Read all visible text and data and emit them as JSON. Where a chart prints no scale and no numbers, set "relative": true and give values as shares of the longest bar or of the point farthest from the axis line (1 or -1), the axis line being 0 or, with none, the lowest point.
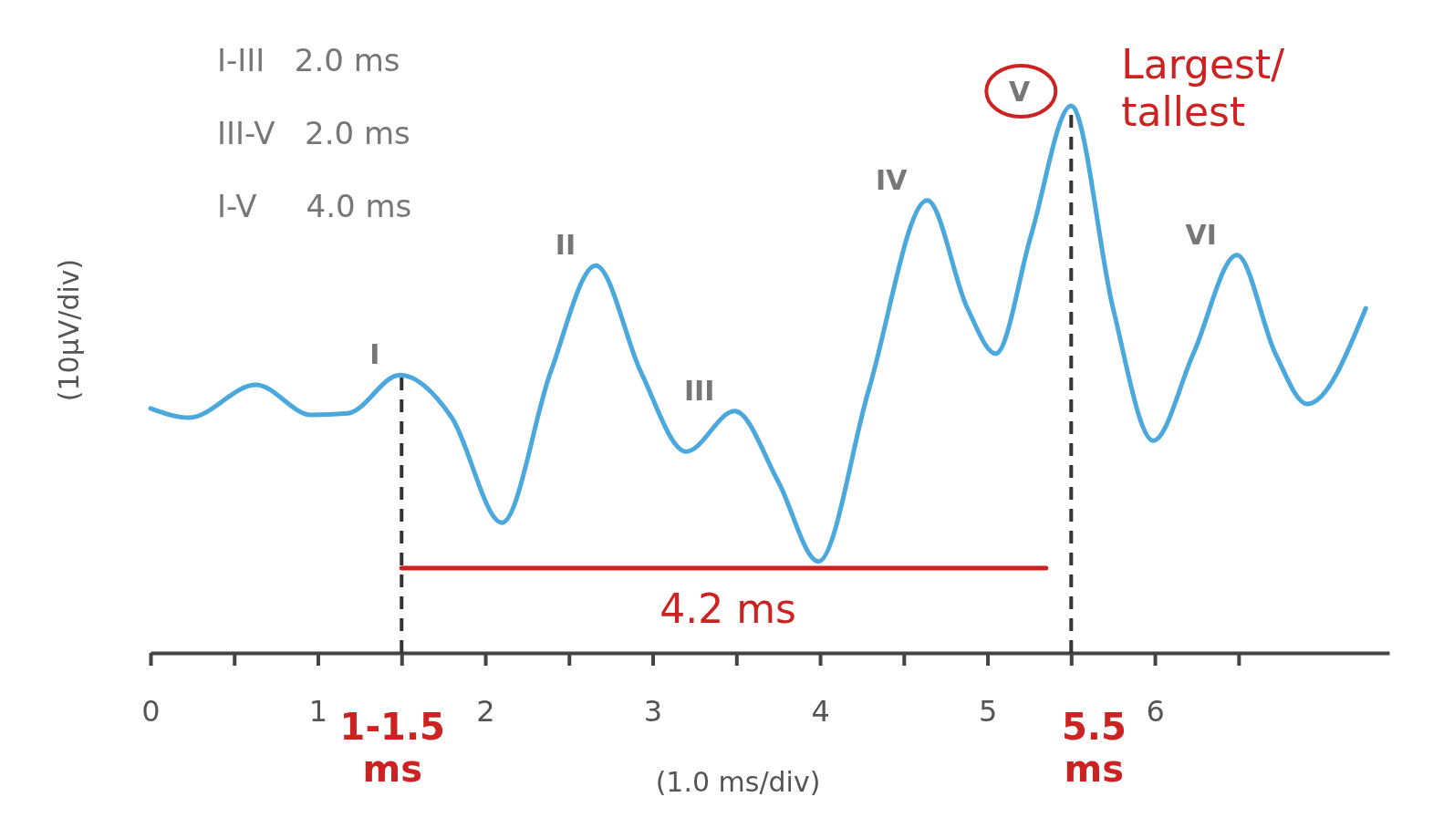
{
  "chart_data": {
    "type": "line",
    "relative": true,
    "xlabel": "(1.0 ms/div)",
    "ylabel": "(10µV/div)",
    "xlim": [
      0,
      7.4
    ],
    "xticks": [
      0,
      {
        "value": 0.5,
        "label": null
      },
      1,
      {
        "value": 1.5,
        "label": null
      },
      2,
      {
        "value": 2.5,
        "label": null
      },
      3,
      {
        "value": 3.5,
        "label": null
      },
      4,
      {
        "value": 4.5,
        "label": null
      },
      5,
      {
        "value": 5.5,
        "label": null
      },
      6,
      {
        "value": 6.5,
        "label": null
      }
    ],
    "series": [
      {
        "color": "#4aa8dc",
        "x": [
          0,
          0.23,
          0.63,
          0.96,
          1.18,
          1.49,
          1.8,
          2.1,
          2.39,
          2.66,
          2.93,
          3.2,
          3.49,
          3.75,
          3.99,
          4.29,
          4.64,
          4.88,
          5.05,
          5.26,
          5.5,
          5.75,
          5.99,
          6.23,
          6.49,
          6.72,
          6.91,
          7.26
        ],
        "values": [
          0.447,
          0.43,
          0.49,
          0.435,
          0.438,
          0.508,
          0.43,
          0.238,
          0.513,
          0.708,
          0.513,
          0.368,
          0.442,
          0.313,
          0.167,
          0.48,
          0.827,
          0.63,
          0.547,
          0.763,
          1,
          0.63,
          0.388,
          0.547,
          0.727,
          0.547,
          0.455,
          0.63
        ]
      },
      {
        "type": "line",
        "color": "#cc2222",
        "x": [
          1.5,
          5.35
        ],
        "values": [
          0.155,
          0.155
        ]
      }
    ],
    "ref_lines": [
      {
        "axis": "x",
        "value": 1.5,
        "color": "#333333",
        "line_style": "dashed"
      },
      {
        "axis": "x",
        "value": 5.5,
        "color": "#333333",
        "line_style": "dashed"
      }
    ],
    "annotations": [
      "I-III   2.0 ms",
      "III-V   2.0 ms",
      "I-V     4.0 ms",
      {
        "text": "I",
        "x": 1.49,
        "y": 0.508
      },
      {
        "text": "II",
        "x": 2.66,
        "y": 0.708
      },
      {
        "text": "III",
        "x": 3.49,
        "y": 0.442
      },
      {
        "text": "IV",
        "x": 4.64,
        "y": 0.827
      },
      {
        "text": "V",
        "x": 5.5,
        "y": 1
      },
      {
        "text": "VI",
        "x": 6.49,
        "y": 0.727
      },
      {
        "text": "Largest/ tallest",
        "x": 5.5,
        "y": 1
      },
      {
        "text": "4.2 ms",
        "x": 3.45,
        "y": 0.155
      },
      {
        "text": "1-1.5 ms",
        "x": 1.5,
        "y": 0
      },
      {
        "text": "5.5 ms",
        "x": 5.5,
        "y": 0
      }
    ],
    "line_style": "solid"
  }
}
